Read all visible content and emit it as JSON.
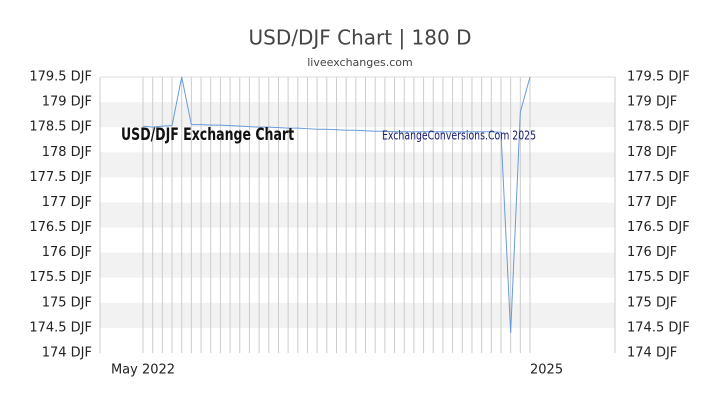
{
  "chart_data": {
    "type": "line",
    "title": "USD/DJF Chart | 180 D",
    "subtitle": "liveexchanges.com",
    "annotations": [
      "USD/DJF Exchange Chart",
      "ExchangeConversions.Com 2025"
    ],
    "categories": [
      "May 2022",
      null,
      null,
      null,
      null,
      null,
      null,
      null,
      null,
      null,
      null,
      null,
      null,
      null,
      null,
      null,
      null,
      null,
      null,
      null,
      null,
      null,
      null,
      null,
      null,
      null,
      null,
      null,
      null,
      null,
      null,
      null,
      null,
      null,
      null,
      null,
      null,
      null,
      null,
      null,
      "2025"
    ],
    "series": [
      {
        "name": "USD/DJF",
        "color": "#6a9bd8",
        "values": [
          178.52,
          178.5,
          178.52,
          178.53,
          179.5,
          178.55,
          178.55,
          178.54,
          178.54,
          178.53,
          178.52,
          178.51,
          178.5,
          178.5,
          178.49,
          178.48,
          178.48,
          178.47,
          178.46,
          178.46,
          178.45,
          178.44,
          178.44,
          178.43,
          178.42,
          178.42,
          178.41,
          178.41,
          178.41,
          178.41,
          178.41,
          178.41,
          178.41,
          178.41,
          178.41,
          178.41,
          178.41,
          178.4,
          174.4,
          178.8,
          179.5
        ]
      }
    ],
    "ylim": [
      174,
      179.5
    ],
    "yticks": [
      {
        "value": 174,
        "label": "174 DJF"
      },
      {
        "value": 174.5,
        "label": "174.5 DJF"
      },
      {
        "value": 175,
        "label": "175 DJF"
      },
      {
        "value": 175.5,
        "label": "175.5 DJF"
      },
      {
        "value": 176,
        "label": "176 DJF"
      },
      {
        "value": 176.5,
        "label": "176.5 DJF"
      },
      {
        "value": 177,
        "label": "177 DJF"
      },
      {
        "value": 177.5,
        "label": "177.5 DJF"
      },
      {
        "value": 178,
        "label": "178 DJF"
      },
      {
        "value": 178.5,
        "label": "178.5 DJF"
      },
      {
        "value": 179,
        "label": "179 DJF"
      },
      {
        "value": 179.5,
        "label": "179.5 DJF"
      }
    ],
    "grid": true
  }
}
